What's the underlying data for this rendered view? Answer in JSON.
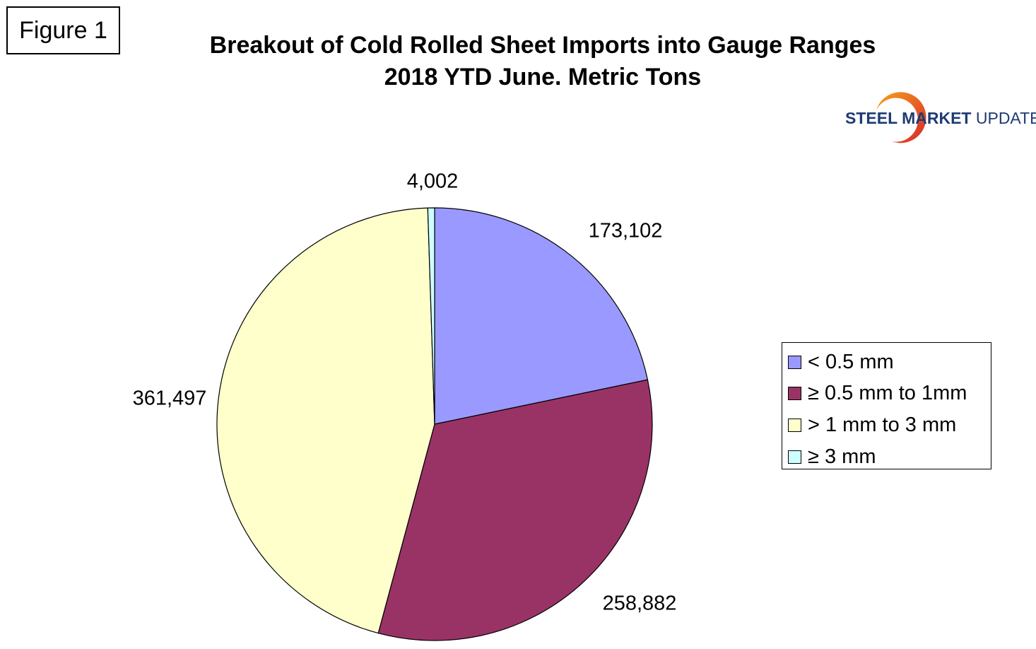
{
  "figure_label": "Figure 1",
  "logo": {
    "bold": "STEEL MARKET",
    "light": " UPDATE"
  },
  "chart_data": {
    "type": "pie",
    "title": "Breakout of Cold Rolled Sheet Imports into Gauge Ranges",
    "subtitle": "2018 YTD June. Metric Tons",
    "categories": [
      "< 0.5 mm",
      "≥ 0.5 mm to 1mm",
      "> 1 mm to 3 mm",
      "≥ 3 mm"
    ],
    "values": [
      173102,
      258882,
      361497,
      4002
    ],
    "data_labels": [
      "173,102",
      "258,882",
      "361,497",
      "4,002"
    ],
    "colors": [
      "#9999ff",
      "#993366",
      "#ffffcc",
      "#ccffff"
    ],
    "legend_position": "right",
    "start_angle_deg": 0,
    "direction": "clockwise"
  }
}
